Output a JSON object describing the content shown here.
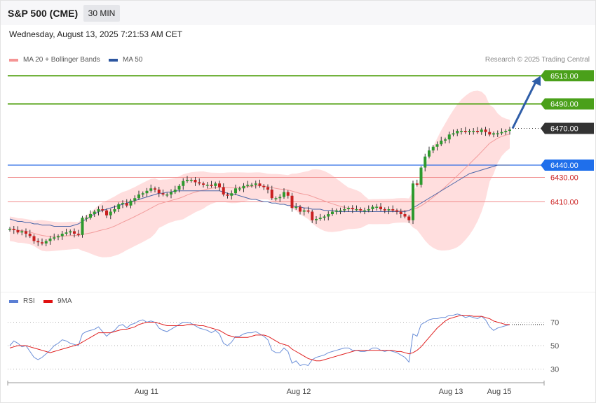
{
  "header": {
    "symbol": "S&P 500 (CME)",
    "timeframe": "30 MIN",
    "timestamp": "Wednesday, August 13, 2025 7:21:53 AM CET"
  },
  "legend": {
    "ma20_label": "MA 20 + Bollinger Bands",
    "ma50_label": "MA 50",
    "copyright": "Research © 2025 Trading Central"
  },
  "rsi_legend": {
    "rsi_label": "RSI",
    "ma_label": "9MA"
  },
  "colors": {
    "up_candle": "#2e9a2e",
    "down_candle": "#c91f1f",
    "band_fill": "#ffdede",
    "ma20": "#f29c9c",
    "ma50": "#4a66a8",
    "resistance": "#5aa51d",
    "pivot": "#2f6de5",
    "support": "#f08a8a",
    "last_price": "#333333",
    "arrow": "#2f5ea8",
    "rsi": "#6b8fd8",
    "rsi_ma": "#e02020"
  },
  "chart_data": [
    {
      "type": "candlestick",
      "title": "S&P 500 (CME)",
      "timeframe": "30 MIN",
      "price_axis_range": [
        6335,
        6530
      ],
      "levels": [
        {
          "label": "6513.00",
          "value": 6513,
          "kind": "resistance"
        },
        {
          "label": "6490.00",
          "value": 6490,
          "kind": "resistance"
        },
        {
          "label": "6470.00",
          "value": 6470,
          "kind": "last"
        },
        {
          "label": "6440.00",
          "value": 6440,
          "kind": "pivot"
        },
        {
          "label": "6430.00",
          "value": 6430,
          "kind": "support"
        },
        {
          "label": "6410.00",
          "value": 6410,
          "kind": "support"
        }
      ],
      "target_arrow": {
        "from": 6470,
        "to": 6513
      },
      "x_ticks": [
        "Aug 11",
        "Aug 12",
        "Aug 13",
        "Aug 15"
      ],
      "closes": [
        6388,
        6387,
        6385,
        6386,
        6384,
        6382,
        6378,
        6377,
        6376,
        6378,
        6380,
        6381,
        6382,
        6384,
        6385,
        6386,
        6384,
        6383,
        6397,
        6397,
        6400,
        6402,
        6404,
        6403,
        6399,
        6402,
        6404,
        6408,
        6409,
        6407,
        6411,
        6413,
        6416,
        6417,
        6419,
        6421,
        6420,
        6417,
        6416,
        6416,
        6418,
        6420,
        6423,
        6427,
        6428,
        6428,
        6426,
        6425,
        6424,
        6424,
        6423,
        6425,
        6422,
        6416,
        6415,
        6417,
        6421,
        6421,
        6423,
        6424,
        6424,
        6425,
        6423,
        6422,
        6420,
        6413,
        6413,
        6414,
        6418,
        6415,
        6405,
        6406,
        6402,
        6403,
        6402,
        6395,
        6396,
        6397,
        6398,
        6400,
        6402,
        6403,
        6403,
        6404,
        6405,
        6404,
        6404,
        6403,
        6403,
        6404,
        6406,
        6406,
        6404,
        6403,
        6404,
        6403,
        6402,
        6400,
        6398,
        6395,
        6425,
        6424,
        6438,
        6447,
        6452,
        6455,
        6457,
        6460,
        6461,
        6465,
        6466,
        6468,
        6468,
        6467,
        6468,
        6468,
        6467,
        6469,
        6467,
        6465,
        6466,
        6466,
        6467,
        6468,
        6469
      ],
      "ma50": [
        6396,
        6395,
        6394,
        6394,
        6393,
        6393,
        6392,
        6392,
        6391,
        6391,
        6391,
        6390,
        6390,
        6390,
        6390,
        6390,
        6391,
        6392,
        6394,
        6396,
        6398,
        6400,
        6402,
        6403,
        6404,
        6405,
        6406,
        6407,
        6408,
        6409,
        6410,
        6411,
        6412,
        6413,
        6414,
        6415,
        6416,
        6417,
        6417,
        6418,
        6418,
        6419,
        6419,
        6419,
        6419,
        6419,
        6419,
        6419,
        6419,
        6419,
        6419,
        6419,
        6419,
        6418,
        6417,
        6416,
        6416,
        6415,
        6414,
        6413,
        6412,
        6412,
        6411,
        6410,
        6410,
        6409,
        6409,
        6408,
        6408,
        6407,
        6407,
        6406,
        6406,
        6405,
        6405,
        6404,
        6404,
        6404,
        6403,
        6403,
        6403,
        6402,
        6402,
        6402,
        6402,
        6402,
        6402,
        6402,
        6402,
        6402,
        6402,
        6402,
        6402,
        6402,
        6402,
        6402,
        6402,
        6402,
        6402,
        6403,
        6405,
        6407,
        6409,
        6411,
        6413,
        6415,
        6417,
        6419,
        6421,
        6423,
        6425,
        6427,
        6429,
        6431,
        6433,
        6434,
        6435,
        6436,
        6437,
        6438,
        6439,
        6440,
        6440,
        6440,
        6440
      ]
    },
    {
      "type": "line",
      "title": "RSI",
      "y_ticks": [
        70,
        50,
        30
      ],
      "series": [
        {
          "name": "RSI",
          "values": [
            50,
            54,
            52,
            49,
            50,
            45,
            40,
            38,
            40,
            43,
            46,
            50,
            52,
            55,
            54,
            52,
            51,
            50,
            60,
            62,
            63,
            64,
            66,
            62,
            58,
            61,
            63,
            67,
            68,
            65,
            68,
            69,
            71,
            72,
            70,
            71,
            70,
            65,
            63,
            62,
            64,
            66,
            68,
            70,
            70,
            69,
            67,
            65,
            64,
            63,
            61,
            63,
            60,
            52,
            50,
            53,
            58,
            58,
            60,
            61,
            61,
            62,
            60,
            58,
            55,
            46,
            44,
            44,
            48,
            45,
            35,
            37,
            33,
            34,
            33,
            38,
            40,
            41,
            42,
            44,
            45,
            46,
            47,
            48,
            48,
            46,
            46,
            45,
            45,
            46,
            48,
            48,
            46,
            45,
            46,
            45,
            44,
            42,
            40,
            36,
            60,
            58,
            68,
            70,
            72,
            73,
            73,
            74,
            74,
            76,
            76,
            77,
            76,
            74,
            75,
            74,
            73,
            75,
            72,
            66,
            63,
            65,
            66,
            67,
            68
          ]
        },
        {
          "name": "9MA",
          "values": [
            48,
            49,
            50,
            50,
            50,
            49,
            48,
            47,
            46,
            45,
            44,
            45,
            46,
            47,
            48,
            49,
            50,
            51,
            53,
            55,
            57,
            59,
            61,
            61,
            61,
            61,
            62,
            63,
            64,
            64,
            65,
            66,
            68,
            69,
            70,
            70,
            70,
            69,
            68,
            67,
            67,
            67,
            67,
            67,
            68,
            68,
            68,
            67,
            67,
            66,
            65,
            64,
            63,
            61,
            59,
            58,
            57,
            57,
            57,
            57,
            58,
            59,
            59,
            59,
            58,
            56,
            54,
            52,
            51,
            50,
            47,
            45,
            43,
            41,
            39,
            38,
            37,
            37,
            38,
            39,
            40,
            41,
            42,
            43,
            44,
            45,
            46,
            46,
            46,
            46,
            46,
            46,
            46,
            46,
            46,
            46,
            45,
            45,
            44,
            43,
            44,
            46,
            49,
            53,
            57,
            61,
            65,
            68,
            71,
            73,
            74,
            75,
            76,
            76,
            76,
            75,
            75,
            75,
            74,
            73,
            71,
            70,
            69,
            68,
            68
          ]
        }
      ]
    }
  ]
}
